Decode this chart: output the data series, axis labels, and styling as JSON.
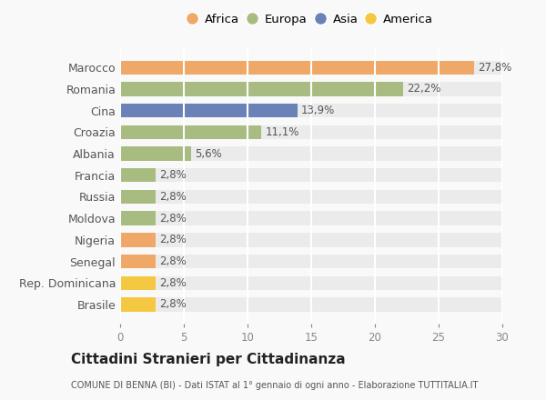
{
  "categories": [
    "Brasile",
    "Rep. Dominicana",
    "Senegal",
    "Nigeria",
    "Moldova",
    "Russia",
    "Francia",
    "Albania",
    "Croazia",
    "Cina",
    "Romania",
    "Marocco"
  ],
  "values": [
    2.8,
    2.8,
    2.8,
    2.8,
    2.8,
    2.8,
    2.8,
    5.6,
    11.1,
    13.9,
    22.2,
    27.8
  ],
  "colors": [
    "#f5c842",
    "#f5c842",
    "#f0a868",
    "#f0a868",
    "#a8bc82",
    "#a8bc82",
    "#a8bc82",
    "#a8bc82",
    "#a8bc82",
    "#6b82b8",
    "#a8bc82",
    "#f0a868"
  ],
  "labels": [
    "2,8%",
    "2,8%",
    "2,8%",
    "2,8%",
    "2,8%",
    "2,8%",
    "2,8%",
    "5,6%",
    "11,1%",
    "13,9%",
    "22,2%",
    "27,8%"
  ],
  "legend": [
    {
      "label": "Africa",
      "color": "#f0a868"
    },
    {
      "label": "Europa",
      "color": "#a8bc82"
    },
    {
      "label": "Asia",
      "color": "#6b82b8"
    },
    {
      "label": "America",
      "color": "#f5c842"
    }
  ],
  "title": "Cittadini Stranieri per Cittadinanza",
  "subtitle": "COMUNE DI BENNA (BI) - Dati ISTAT al 1° gennaio di ogni anno - Elaborazione TUTTITALIA.IT",
  "xlim": [
    0,
    30
  ],
  "xticks": [
    0,
    5,
    10,
    15,
    20,
    25,
    30
  ],
  "background_color": "#f9f9f9",
  "bar_bg_color": "#ebebeb",
  "grid_color": "#ffffff"
}
